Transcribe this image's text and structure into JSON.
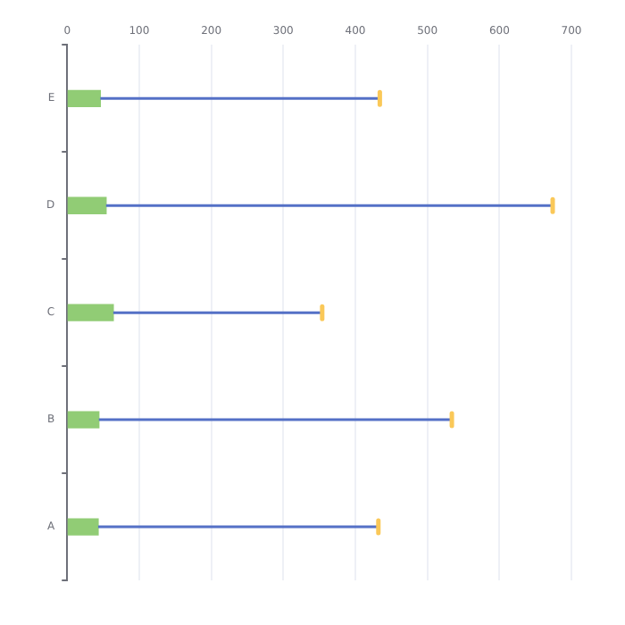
{
  "chart_data": {
    "type": "bar",
    "orientation": "horizontal",
    "categories": [
      "E",
      "D",
      "C",
      "B",
      "A"
    ],
    "values": [
      46,
      54,
      64,
      44,
      43
    ],
    "color": "#91cc75",
    "errors": [
      [
        46,
        434
      ],
      [
        54,
        674
      ],
      [
        64,
        354
      ],
      [
        44,
        534
      ],
      [
        43,
        432
      ]
    ],
    "xlim": [
      0,
      700
    ],
    "xticks": [
      0,
      100,
      200,
      300,
      400,
      500,
      600,
      700
    ],
    "grid": "x",
    "legend": false
  }
}
